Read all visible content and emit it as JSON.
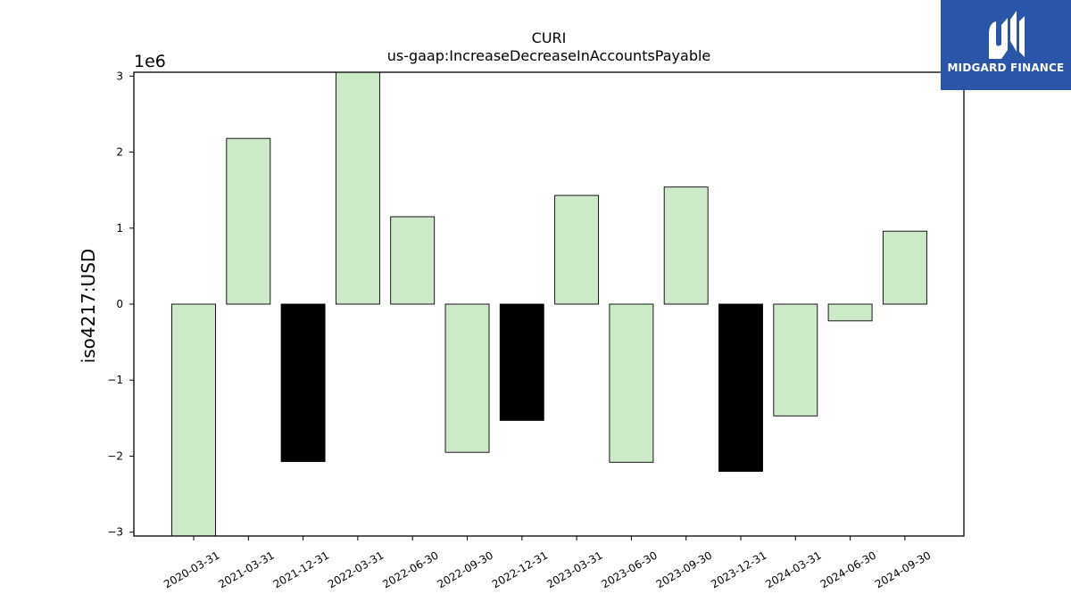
{
  "chart_data": {
    "type": "bar",
    "title": "CURI",
    "subtitle": "us-gaap:IncreaseDecreaseInAccountsPayable",
    "ylabel": "iso4217:USD",
    "xlabel": "",
    "y_scale_label": "1e6",
    "ylim": [
      -3.05,
      3.05
    ],
    "yticks": [
      -3,
      -2,
      -1,
      0,
      1,
      2,
      3
    ],
    "ytick_labels": [
      "−3",
      "−2",
      "−1",
      "0",
      "1",
      "2",
      "3"
    ],
    "grid": false,
    "categories": [
      "2020-03-31",
      "2021-03-31",
      "2021-12-31",
      "2022-03-31",
      "2022-06-30",
      "2022-09-30",
      "2022-12-31",
      "2023-03-31",
      "2023-06-30",
      "2023-09-30",
      "2023-12-31",
      "2024-03-31",
      "2024-06-30",
      "2024-09-30"
    ],
    "values": [
      -3.05,
      2.18,
      -2.07,
      3.05,
      1.15,
      -1.95,
      -1.53,
      1.43,
      -2.08,
      1.54,
      -2.2,
      -1.47,
      -0.22,
      0.96
    ],
    "bar_colors": [
      "#cdeac8",
      "#cdeac8",
      "#000000",
      "#cdeac8",
      "#cdeac8",
      "#cdeac8",
      "#000000",
      "#cdeac8",
      "#cdeac8",
      "#cdeac8",
      "#000000",
      "#cdeac8",
      "#cdeac8",
      "#cdeac8"
    ]
  },
  "logo": {
    "text": "MIDGARD FINANCE",
    "background": "#2a55a8"
  }
}
